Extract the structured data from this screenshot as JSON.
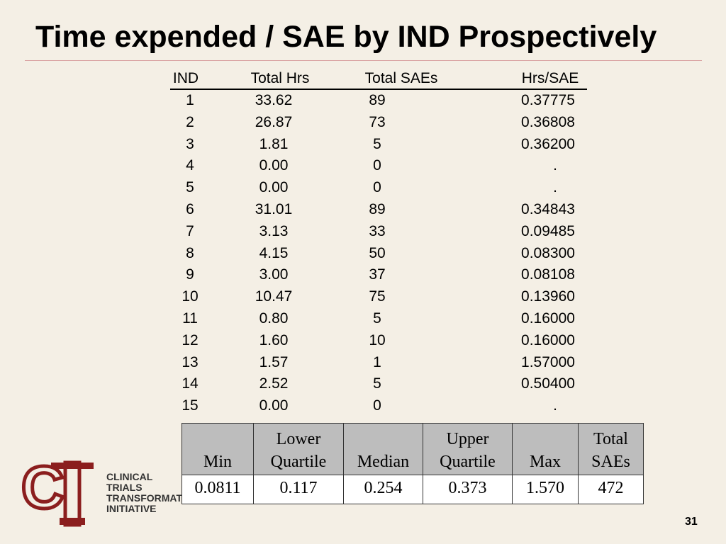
{
  "header": {
    "title": "Time expended / SAE by IND Prospectively"
  },
  "table": {
    "columns": [
      "IND",
      "Total Hrs",
      "Total SAEs",
      "Hrs/SAE"
    ],
    "rows": [
      [
        "1",
        "33.62",
        "89",
        "0.37775"
      ],
      [
        "2",
        "26.87",
        "73",
        "0.36808"
      ],
      [
        "3",
        "1.81",
        "5",
        "0.36200"
      ],
      [
        "4",
        "0.00",
        "0",
        "."
      ],
      [
        "5",
        "0.00",
        "0",
        "."
      ],
      [
        "6",
        "31.01",
        "89",
        "0.34843"
      ],
      [
        "7",
        "3.13",
        "33",
        "0.09485"
      ],
      [
        "8",
        "4.15",
        "50",
        "0.08300"
      ],
      [
        "9",
        "3.00",
        "37",
        "0.08108"
      ],
      [
        "10",
        "10.47",
        "75",
        "0.13960"
      ],
      [
        "11",
        "0.80",
        "5",
        "0.16000"
      ],
      [
        "12",
        "1.60",
        "10",
        "0.16000"
      ],
      [
        "13",
        "1.57",
        "1",
        "1.57000"
      ],
      [
        "14",
        "2.52",
        "5",
        "0.50400"
      ],
      [
        "15",
        "0.00",
        "0",
        "."
      ]
    ]
  },
  "summary": {
    "columns": [
      "Min",
      "Lower Quartile",
      "Median",
      "Upper Quartile",
      "Max",
      "Total SAEs"
    ],
    "values": [
      "0.0811",
      "0.117",
      "0.254",
      "0.373",
      "1.570",
      "472"
    ]
  },
  "logo": {
    "letters": "CTI",
    "lines": [
      "CLINICAL",
      "TRIALS",
      "TRANSFORMATION",
      "INITIATIVE"
    ]
  },
  "page_number": "31"
}
